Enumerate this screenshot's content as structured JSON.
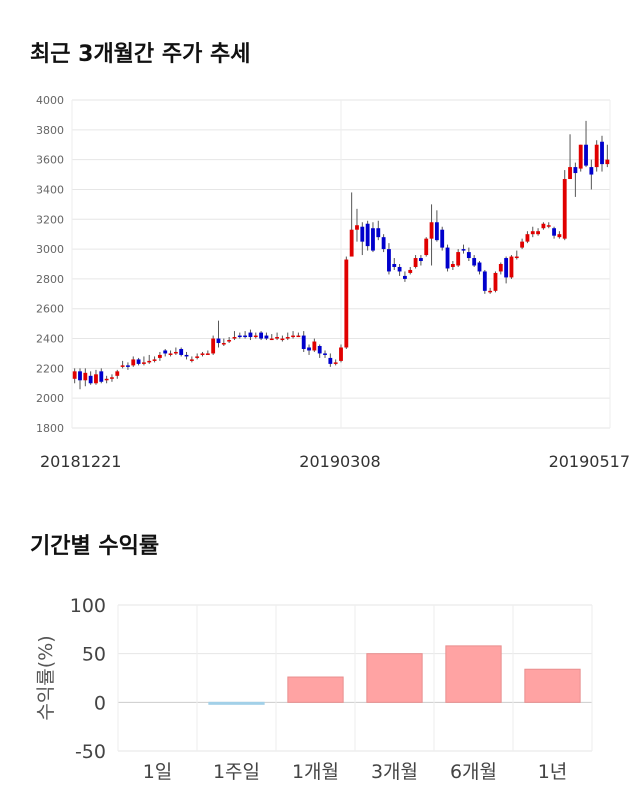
{
  "headings": {
    "price_trend": "최근 3개월간 주가 추세",
    "period_return": "기간별 수익률"
  },
  "chart_data": [
    {
      "type": "candlestick",
      "title": "최근 3개월간 주가 추세",
      "ylim": [
        1800,
        4000
      ],
      "yticks": [
        "4000",
        "3800",
        "3600",
        "3400",
        "3200",
        "3000",
        "2800",
        "2600",
        "2400",
        "2200",
        "2000",
        "1800"
      ],
      "xtick_labels": [
        "20181221",
        "20190308",
        "20190517"
      ],
      "grid": true,
      "colors": {
        "up": "#e00000",
        "down": "#0000cc"
      },
      "candles": [
        [
          2130,
          2180,
          2100,
          2200
        ],
        [
          2180,
          2120,
          2060,
          2200
        ],
        [
          2120,
          2170,
          2080,
          2200
        ],
        [
          2150,
          2100,
          2090,
          2180
        ],
        [
          2100,
          2160,
          2090,
          2190
        ],
        [
          2180,
          2110,
          2100,
          2200
        ],
        [
          2120,
          2130,
          2100,
          2150
        ],
        [
          2130,
          2140,
          2110,
          2160
        ],
        [
          2150,
          2180,
          2130,
          2190
        ],
        [
          2210,
          2220,
          2200,
          2250
        ],
        [
          2220,
          2210,
          2190,
          2240
        ],
        [
          2220,
          2260,
          2210,
          2280
        ],
        [
          2260,
          2230,
          2220,
          2270
        ],
        [
          2230,
          2240,
          2220,
          2280
        ],
        [
          2250,
          2250,
          2230,
          2290
        ],
        [
          2250,
          2260,
          2240,
          2280
        ],
        [
          2270,
          2290,
          2250,
          2310
        ],
        [
          2320,
          2300,
          2280,
          2330
        ],
        [
          2300,
          2300,
          2280,
          2320
        ],
        [
          2310,
          2310,
          2290,
          2340
        ],
        [
          2330,
          2290,
          2280,
          2340
        ],
        [
          2290,
          2280,
          2260,
          2310
        ],
        [
          2250,
          2260,
          2240,
          2280
        ],
        [
          2270,
          2280,
          2260,
          2300
        ],
        [
          2290,
          2300,
          2280,
          2310
        ],
        [
          2300,
          2300,
          2290,
          2320
        ],
        [
          2300,
          2400,
          2290,
          2420
        ],
        [
          2400,
          2370,
          2340,
          2520
        ],
        [
          2360,
          2370,
          2350,
          2400
        ],
        [
          2380,
          2390,
          2370,
          2410
        ],
        [
          2400,
          2410,
          2390,
          2450
        ],
        [
          2420,
          2410,
          2400,
          2440
        ],
        [
          2420,
          2410,
          2400,
          2450
        ],
        [
          2440,
          2410,
          2390,
          2460
        ],
        [
          2410,
          2420,
          2400,
          2440
        ],
        [
          2440,
          2400,
          2390,
          2450
        ],
        [
          2420,
          2400,
          2390,
          2440
        ],
        [
          2400,
          2400,
          2390,
          2430
        ],
        [
          2410,
          2410,
          2390,
          2440
        ],
        [
          2390,
          2400,
          2380,
          2420
        ],
        [
          2400,
          2410,
          2390,
          2440
        ],
        [
          2410,
          2420,
          2400,
          2450
        ],
        [
          2420,
          2420,
          2410,
          2440
        ],
        [
          2420,
          2330,
          2310,
          2450
        ],
        [
          2340,
          2320,
          2290,
          2360
        ],
        [
          2320,
          2380,
          2310,
          2400
        ],
        [
          2350,
          2300,
          2270,
          2360
        ],
        [
          2300,
          2290,
          2270,
          2320
        ],
        [
          2270,
          2230,
          2210,
          2300
        ],
        [
          2230,
          2240,
          2220,
          2260
        ],
        [
          2250,
          2340,
          2240,
          2360
        ],
        [
          2340,
          2930,
          2330,
          2950
        ],
        [
          2950,
          3130,
          2960,
          3380
        ],
        [
          3130,
          3160,
          3050,
          3270
        ],
        [
          3150,
          3050,
          2960,
          3180
        ],
        [
          3170,
          3020,
          2990,
          3190
        ],
        [
          3140,
          2990,
          2980,
          3180
        ],
        [
          3140,
          3080,
          3060,
          3190
        ],
        [
          3080,
          3000,
          2980,
          3100
        ],
        [
          3000,
          2850,
          2830,
          3040
        ],
        [
          2900,
          2880,
          2860,
          2940
        ],
        [
          2880,
          2850,
          2820,
          2900
        ],
        [
          2820,
          2800,
          2780,
          2850
        ],
        [
          2840,
          2860,
          2830,
          2880
        ],
        [
          2880,
          2940,
          2870,
          2960
        ],
        [
          2940,
          2920,
          2890,
          2960
        ],
        [
          2960,
          3070,
          2950,
          3080
        ],
        [
          3070,
          3180,
          2890,
          3300
        ],
        [
          3180,
          3060,
          3050,
          3260
        ],
        [
          3130,
          3010,
          2990,
          3150
        ],
        [
          3010,
          2870,
          2850,
          3030
        ],
        [
          2880,
          2900,
          2860,
          2920
        ],
        [
          2890,
          2980,
          2880,
          3000
        ],
        [
          3000,
          2990,
          2970,
          3030
        ],
        [
          2980,
          2940,
          2920,
          3010
        ],
        [
          2940,
          2890,
          2880,
          2960
        ],
        [
          2910,
          2850,
          2830,
          2920
        ],
        [
          2850,
          2720,
          2700,
          2860
        ],
        [
          2720,
          2720,
          2700,
          2740
        ],
        [
          2720,
          2840,
          2710,
          2850
        ],
        [
          2850,
          2900,
          2830,
          2910
        ],
        [
          2940,
          2810,
          2770,
          2950
        ],
        [
          2810,
          2950,
          2800,
          2960
        ],
        [
          2950,
          2950,
          2930,
          2990
        ],
        [
          3010,
          3050,
          3000,
          3070
        ],
        [
          3050,
          3100,
          3040,
          3120
        ],
        [
          3100,
          3120,
          3080,
          3150
        ],
        [
          3100,
          3120,
          3090,
          3140
        ],
        [
          3140,
          3170,
          3130,
          3180
        ],
        [
          3150,
          3160,
          3140,
          3180
        ],
        [
          3140,
          3090,
          3070,
          3150
        ],
        [
          3080,
          3100,
          3070,
          3120
        ],
        [
          3070,
          3470,
          3060,
          3530
        ],
        [
          3470,
          3550,
          3470,
          3770
        ],
        [
          3550,
          3510,
          3350,
          3580
        ],
        [
          3540,
          3700,
          3520,
          3700
        ],
        [
          3700,
          3560,
          3550,
          3860
        ],
        [
          3550,
          3500,
          3400,
          3600
        ],
        [
          3550,
          3700,
          3520,
          3730
        ],
        [
          3720,
          3570,
          3520,
          3760
        ],
        [
          3570,
          3600,
          3550,
          3700
        ]
      ]
    },
    {
      "type": "bar",
      "title": "기간별 수익률",
      "categories": [
        "1일",
        "1주일",
        "1개월",
        "3개월",
        "6개월",
        "1년"
      ],
      "values": [
        0,
        -1,
        26,
        50,
        58,
        34
      ],
      "ylabel": "수익률(%)",
      "ylim": [
        -50,
        100
      ],
      "yticks": [
        "100",
        "50",
        "0",
        "-50"
      ],
      "grid": true,
      "colors": {
        "positive": "#ffa3a3",
        "positive_edge": "#e88e8e",
        "negative": "#a3d0e8"
      }
    }
  ]
}
